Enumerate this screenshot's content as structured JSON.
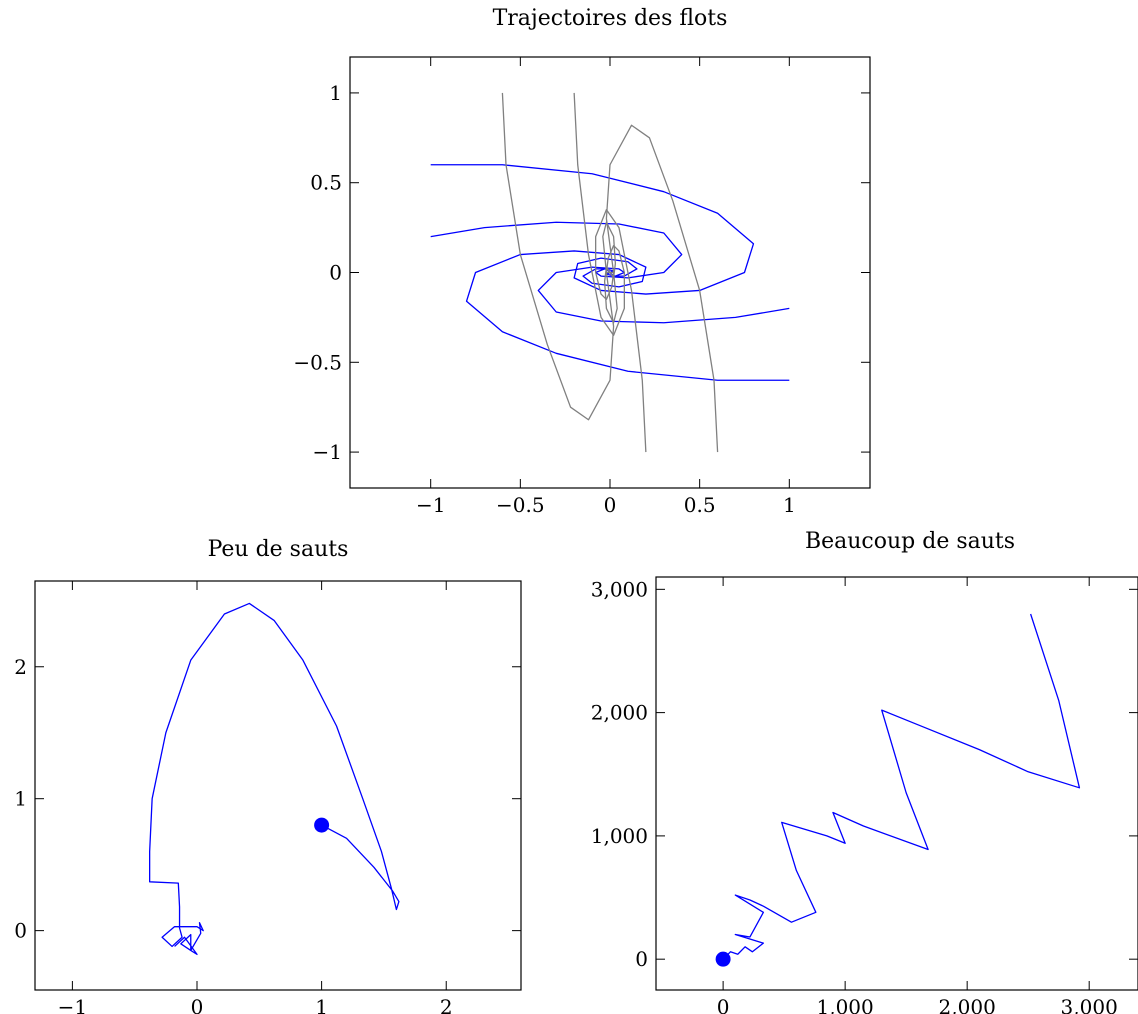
{
  "chart_data": [
    {
      "type": "line",
      "title": "Trajectoires des flots",
      "xlim": [
        -1.45,
        1.45
      ],
      "ylim": [
        -1.2,
        1.2
      ],
      "grid": false,
      "xticks": [
        {
          "value": -1,
          "label": "−1"
        },
        {
          "value": -0.5,
          "label": "−0.5"
        },
        {
          "value": 0,
          "label": "0"
        },
        {
          "value": 0.5,
          "label": "0.5"
        },
        {
          "value": 1,
          "label": "1"
        }
      ],
      "yticks": [
        {
          "value": 1,
          "label": "1"
        },
        {
          "value": 0.5,
          "label": "0.5"
        },
        {
          "value": 0,
          "label": "0"
        },
        {
          "value": -0.5,
          "label": "−0.5"
        },
        {
          "value": -1,
          "label": "−1"
        }
      ],
      "colors": {
        "blue": "#0000ff",
        "gray": "#808080"
      },
      "series": [
        {
          "color": "blue",
          "points": [
            [
              -1,
              0.6
            ],
            [
              -0.6,
              0.6
            ],
            [
              -0.1,
              0.55
            ],
            [
              0.3,
              0.45
            ],
            [
              0.6,
              0.33
            ],
            [
              0.8,
              0.16
            ],
            [
              0.75,
              0.0
            ],
            [
              0.5,
              -0.1
            ],
            [
              0.2,
              -0.12
            ],
            [
              -0.05,
              -0.1
            ],
            [
              -0.2,
              -0.03
            ],
            [
              -0.18,
              0.05
            ],
            [
              -0.05,
              0.08
            ],
            [
              0.1,
              0.06
            ],
            [
              0.15,
              0.02
            ],
            [
              0.08,
              -0.02
            ],
            [
              0.02,
              -0.02
            ],
            [
              0,
              0
            ]
          ]
        },
        {
          "color": "blue",
          "points": [
            [
              1,
              -0.6
            ],
            [
              0.6,
              -0.6
            ],
            [
              0.1,
              -0.55
            ],
            [
              -0.3,
              -0.45
            ],
            [
              -0.6,
              -0.33
            ],
            [
              -0.8,
              -0.16
            ],
            [
              -0.75,
              0.0
            ],
            [
              -0.5,
              0.1
            ],
            [
              -0.2,
              0.12
            ],
            [
              0.05,
              0.1
            ],
            [
              0.2,
              0.03
            ],
            [
              0.18,
              -0.05
            ],
            [
              0.05,
              -0.08
            ],
            [
              -0.1,
              -0.06
            ],
            [
              -0.15,
              -0.02
            ],
            [
              -0.08,
              0.02
            ],
            [
              -0.02,
              0.02
            ],
            [
              0,
              0
            ]
          ]
        },
        {
          "color": "blue",
          "points": [
            [
              -1,
              0.2
            ],
            [
              -0.7,
              0.25
            ],
            [
              -0.3,
              0.28
            ],
            [
              0.05,
              0.27
            ],
            [
              0.3,
              0.22
            ],
            [
              0.4,
              0.1
            ],
            [
              0.3,
              0.0
            ],
            [
              0.1,
              -0.03
            ],
            [
              -0.05,
              -0.02
            ],
            [
              -0.08,
              0.0
            ],
            [
              -0.03,
              0.02
            ],
            [
              0.02,
              0.01
            ],
            [
              0,
              0
            ]
          ]
        },
        {
          "color": "blue",
          "points": [
            [
              1,
              -0.2
            ],
            [
              0.7,
              -0.25
            ],
            [
              0.3,
              -0.28
            ],
            [
              -0.05,
              -0.27
            ],
            [
              -0.3,
              -0.22
            ],
            [
              -0.4,
              -0.1
            ],
            [
              -0.3,
              0.0
            ],
            [
              -0.1,
              0.03
            ],
            [
              0.05,
              0.02
            ],
            [
              0.08,
              0.0
            ],
            [
              0.03,
              -0.02
            ],
            [
              -0.02,
              -0.01
            ],
            [
              0,
              0
            ]
          ]
        },
        {
          "color": "gray",
          "points": [
            [
              -0.6,
              1
            ],
            [
              -0.58,
              0.6
            ],
            [
              -0.5,
              0.1
            ],
            [
              -0.35,
              -0.4
            ],
            [
              -0.22,
              -0.75
            ],
            [
              -0.12,
              -0.82
            ],
            [
              0.0,
              -0.6
            ],
            [
              0.02,
              -0.3
            ],
            [
              -0.02,
              0.0
            ],
            [
              -0.04,
              0.2
            ],
            [
              -0.02,
              0.28
            ],
            [
              0.02,
              0.2
            ],
            [
              0.03,
              0.05
            ],
            [
              0.02,
              -0.03
            ],
            [
              0,
              0
            ]
          ]
        },
        {
          "color": "gray",
          "points": [
            [
              0.6,
              -1
            ],
            [
              0.58,
              -0.6
            ],
            [
              0.5,
              -0.1
            ],
            [
              0.35,
              0.4
            ],
            [
              0.22,
              0.75
            ],
            [
              0.12,
              0.82
            ],
            [
              0.0,
              0.6
            ],
            [
              -0.02,
              0.3
            ],
            [
              0.02,
              0.0
            ],
            [
              0.04,
              -0.2
            ],
            [
              0.02,
              -0.28
            ],
            [
              -0.02,
              -0.2
            ],
            [
              -0.03,
              -0.05
            ],
            [
              -0.02,
              0.03
            ],
            [
              0,
              0
            ]
          ]
        },
        {
          "color": "gray",
          "points": [
            [
              -0.2,
              1
            ],
            [
              -0.18,
              0.6
            ],
            [
              -0.12,
              0.1
            ],
            [
              -0.05,
              -0.25
            ],
            [
              0.02,
              -0.35
            ],
            [
              0.08,
              -0.2
            ],
            [
              0.08,
              0.0
            ],
            [
              0.05,
              0.12
            ],
            [
              0.02,
              0.15
            ],
            [
              -0.01,
              0.08
            ],
            [
              -0.02,
              0.0
            ],
            [
              0,
              0
            ]
          ]
        },
        {
          "color": "gray",
          "points": [
            [
              0.2,
              -1
            ],
            [
              0.18,
              -0.6
            ],
            [
              0.12,
              -0.1
            ],
            [
              0.05,
              0.25
            ],
            [
              -0.02,
              0.35
            ],
            [
              -0.08,
              0.2
            ],
            [
              -0.08,
              0.0
            ],
            [
              -0.05,
              -0.12
            ],
            [
              -0.02,
              -0.15
            ],
            [
              0.01,
              -0.08
            ],
            [
              0.02,
              0.0
            ],
            [
              0,
              0
            ]
          ]
        }
      ]
    },
    {
      "type": "line",
      "title": "Peu de sauts",
      "xlim": [
        -1.3,
        2.6
      ],
      "ylim": [
        -0.45,
        2.65
      ],
      "grid": false,
      "xticks": [
        {
          "value": -1,
          "label": "−1"
        },
        {
          "value": 0,
          "label": "0"
        },
        {
          "value": 1,
          "label": "1"
        },
        {
          "value": 2,
          "label": "2"
        }
      ],
      "yticks": [
        {
          "value": 0,
          "label": "0"
        },
        {
          "value": 1,
          "label": "1"
        },
        {
          "value": 2,
          "label": "2"
        }
      ],
      "colors": {
        "blue": "#0000ff"
      },
      "start_point": [
        1,
        0.8
      ],
      "series": [
        {
          "color": "blue",
          "points": [
            [
              1,
              0.8
            ],
            [
              1.2,
              0.7
            ],
            [
              1.42,
              0.48
            ],
            [
              1.57,
              0.3
            ],
            [
              1.62,
              0.22
            ],
            [
              1.6,
              0.16
            ],
            [
              1.56,
              0.32
            ],
            [
              1.48,
              0.6
            ],
            [
              1.33,
              1.0
            ],
            [
              1.12,
              1.55
            ],
            [
              0.85,
              2.05
            ],
            [
              0.62,
              2.35
            ],
            [
              0.42,
              2.48
            ],
            [
              0.22,
              2.4
            ],
            [
              -0.05,
              2.05
            ],
            [
              -0.25,
              1.5
            ],
            [
              -0.36,
              1.0
            ],
            [
              -0.38,
              0.6
            ],
            [
              -0.38,
              0.37
            ],
            [
              -0.15,
              0.36
            ],
            [
              -0.14,
              0.18
            ],
            [
              -0.14,
              0.02
            ],
            [
              -0.12,
              -0.05
            ],
            [
              -0.2,
              -0.12
            ],
            [
              -0.28,
              -0.05
            ],
            [
              -0.18,
              0.03
            ],
            [
              0.0,
              0.03
            ],
            [
              0.05,
              0.0
            ],
            [
              0.02,
              0.06
            ],
            [
              0.03,
              -0.02
            ],
            [
              -0.05,
              -0.15
            ],
            [
              -0.13,
              -0.1
            ],
            [
              -0.05,
              -0.03
            ],
            [
              -0.05,
              -0.15
            ],
            [
              0.0,
              -0.18
            ],
            [
              -0.1,
              -0.05
            ],
            [
              -0.18,
              -0.12
            ]
          ]
        }
      ]
    },
    {
      "type": "line",
      "title": "Beaucoup de sauts",
      "xlim": [
        -550,
        3400
      ],
      "ylim": [
        -250,
        3100
      ],
      "grid": false,
      "xticks": [
        {
          "value": 0,
          "label": "0"
        },
        {
          "value": 1000,
          "label": "1,000"
        },
        {
          "value": 2000,
          "label": "2,000"
        },
        {
          "value": 3000,
          "label": "3,000"
        }
      ],
      "yticks": [
        {
          "value": 0,
          "label": "0"
        },
        {
          "value": 1000,
          "label": "1,000"
        },
        {
          "value": 2000,
          "label": "2,000"
        },
        {
          "value": 3000,
          "label": "3,000"
        }
      ],
      "colors": {
        "blue": "#0000ff"
      },
      "start_point": [
        0,
        0
      ],
      "series": [
        {
          "color": "blue",
          "points": [
            [
              0,
              0
            ],
            [
              60,
              60
            ],
            [
              120,
              40
            ],
            [
              180,
              100
            ],
            [
              240,
              60
            ],
            [
              330,
              130
            ],
            [
              100,
              200
            ],
            [
              220,
              180
            ],
            [
              330,
              380
            ],
            [
              100,
              520
            ],
            [
              220,
              480
            ],
            [
              330,
              430
            ],
            [
              560,
              300
            ],
            [
              760,
              380
            ],
            [
              600,
              720
            ],
            [
              480,
              1110
            ],
            [
              850,
              1000
            ],
            [
              1000,
              940
            ],
            [
              900,
              1190
            ],
            [
              1150,
              1080
            ],
            [
              1680,
              890
            ],
            [
              1500,
              1350
            ],
            [
              1300,
              2020
            ],
            [
              1600,
              1900
            ],
            [
              2100,
              1700
            ],
            [
              2500,
              1520
            ],
            [
              2920,
              1390
            ],
            [
              2750,
              2100
            ],
            [
              2520,
              2800
            ]
          ]
        }
      ]
    }
  ]
}
